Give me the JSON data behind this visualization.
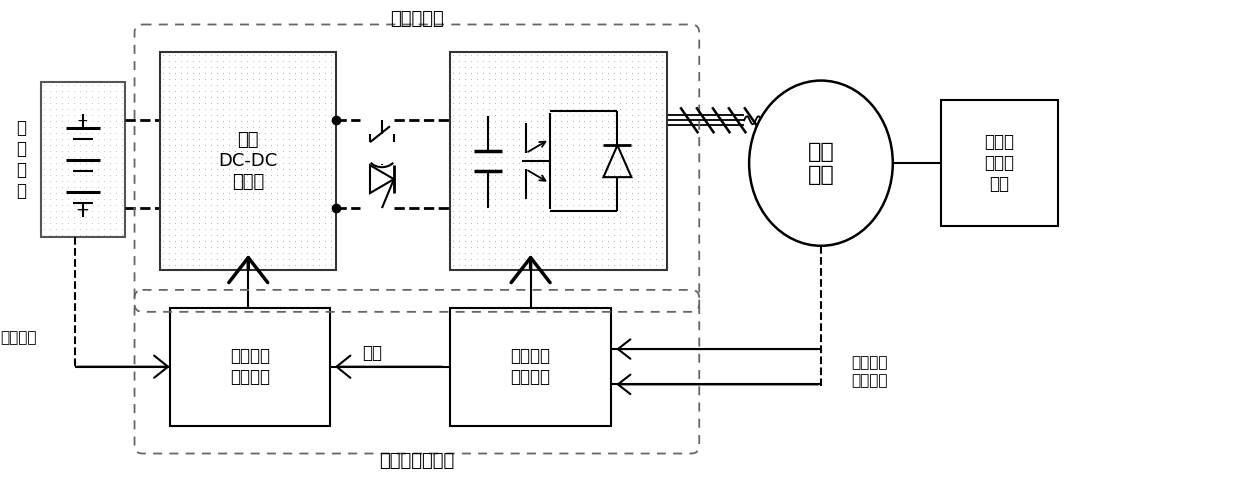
{
  "title_power_converter": "电力变换器",
  "title_aux_torque_controller": "辅助转矩控制器",
  "label_energy_storage": "储\n能\n装\n置",
  "label_bidirectional_dcdc": "双向\nDC-DC\n变换器",
  "label_aux_motor": "辅助\n电机",
  "label_aux_torque_device": "辅助转\n矩传递\n装置",
  "label_energy_ctrl": "储能装置\n控制单元",
  "label_aux_torque_ctrl": "辅助转矩\n控制单元",
  "label_energy_state": "储能状态",
  "label_voltage": "电压",
  "label_aux_motor_torque_cmd": "辅助电机\n转矩指令",
  "bg_color": "#ffffff",
  "dot_color": "#aaaaaa",
  "line_color": "#000000",
  "box_edge": "#000000",
  "outer_box_edge": "#888888"
}
